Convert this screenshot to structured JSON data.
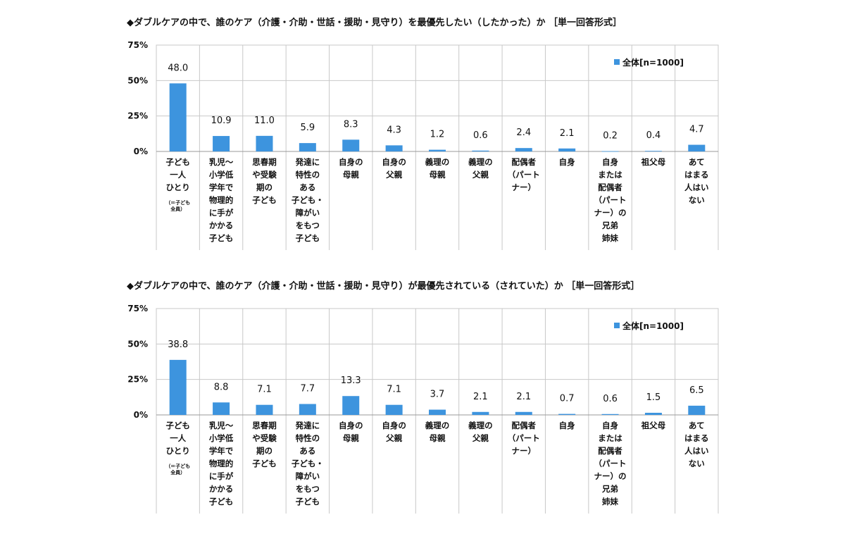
{
  "colors": {
    "bar": "#3d94de",
    "grid": "#c8c8c8",
    "axis": "#999999"
  },
  "chart_data": [
    {
      "type": "bar",
      "title": "◆ダブルケアの中で、誰のケア（介護・介助・世話・援助・見守り）を最優先したい（したかった）か ［単一回答形式］",
      "categories": [
        [
          "子ども",
          "一人",
          "ひとり"
        ],
        [
          "乳児～",
          "小学低",
          "学年で",
          "物理的",
          "に手が",
          "かかる",
          "子ども"
        ],
        [
          "思春期",
          "や受験",
          "期の",
          "子ども"
        ],
        [
          "発達に",
          "特性の",
          "ある",
          "子ども・",
          "障がい",
          "をもつ",
          "子ども"
        ],
        [
          "自身の",
          "母親"
        ],
        [
          "自身の",
          "父親"
        ],
        [
          "義理の",
          "母親"
        ],
        [
          "義理の",
          "父親"
        ],
        [
          "配偶者",
          "（パート",
          "ナー）"
        ],
        [
          "自身"
        ],
        [
          "自身",
          "または",
          "配偶者",
          "（パート",
          "ナー）の",
          "兄弟",
          "姉妹"
        ],
        [
          "祖父母"
        ],
        [
          "あて",
          "はまる",
          "人はい",
          "ない"
        ]
      ],
      "category_notes": [
        "（＝子ども",
        "全員）"
      ],
      "series": [
        {
          "name": "全体[n=1000]",
          "values": [
            48.0,
            10.9,
            11.0,
            5.9,
            8.3,
            4.3,
            1.2,
            0.6,
            2.4,
            2.1,
            0.2,
            0.4,
            4.7
          ]
        }
      ],
      "value_labels": [
        "48.0",
        "10.9",
        "11.0",
        "5.9",
        "8.3",
        "4.3",
        "1.2",
        "0.6",
        "2.4",
        "2.1",
        "0.2",
        "0.4",
        "4.7"
      ],
      "yticks": [
        "0%",
        "25%",
        "50%",
        "75%"
      ],
      "ylim": [
        0,
        75
      ],
      "grid": true,
      "legend_position": "top-right"
    },
    {
      "type": "bar",
      "title": "◆ダブルケアの中で、誰のケア（介護・介助・世話・援助・見守り）が最優先されている（されていた）か ［単一回答形式］",
      "categories": [
        [
          "子ども",
          "一人",
          "ひとり"
        ],
        [
          "乳児～",
          "小学低",
          "学年で",
          "物理的",
          "に手が",
          "かかる",
          "子ども"
        ],
        [
          "思春期",
          "や受験",
          "期の",
          "子ども"
        ],
        [
          "発達に",
          "特性の",
          "ある",
          "子ども・",
          "障がい",
          "をもつ",
          "子ども"
        ],
        [
          "自身の",
          "母親"
        ],
        [
          "自身の",
          "父親"
        ],
        [
          "義理の",
          "母親"
        ],
        [
          "義理の",
          "父親"
        ],
        [
          "配偶者",
          "（パート",
          "ナー）"
        ],
        [
          "自身"
        ],
        [
          "自身",
          "または",
          "配偶者",
          "（パート",
          "ナー）の",
          "兄弟",
          "姉妹"
        ],
        [
          "祖父母"
        ],
        [
          "あて",
          "はまる",
          "人はい",
          "ない"
        ]
      ],
      "category_notes": [
        "（＝子ども",
        "全員）"
      ],
      "series": [
        {
          "name": "全体[n=1000]",
          "values": [
            38.8,
            8.8,
            7.1,
            7.7,
            13.3,
            7.1,
            3.7,
            2.1,
            2.1,
            0.7,
            0.6,
            1.5,
            6.5
          ]
        }
      ],
      "value_labels": [
        "38.8",
        "8.8",
        "7.1",
        "7.7",
        "13.3",
        "7.1",
        "3.7",
        "2.1",
        "2.1",
        "0.7",
        "0.6",
        "1.5",
        "6.5"
      ],
      "yticks": [
        "0%",
        "25%",
        "50%",
        "75%"
      ],
      "ylim": [
        0,
        75
      ],
      "grid": true,
      "legend_position": "top-right"
    }
  ]
}
